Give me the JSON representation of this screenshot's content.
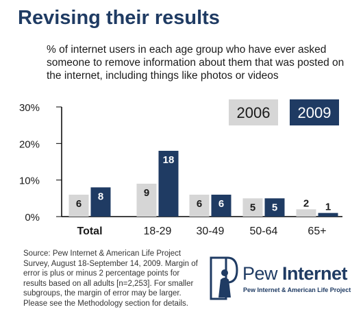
{
  "header": {
    "title": "Revising their results",
    "subtitle": "% of internet users in each age group who have ever asked someone to remove information about them that was posted on the internet, including things like photos or videos"
  },
  "chart_data": {
    "type": "bar",
    "categories": [
      "Total",
      "18-29",
      "30-49",
      "50-64",
      "65+"
    ],
    "series": [
      {
        "name": "2006",
        "values": [
          6,
          9,
          6,
          5,
          2
        ],
        "color": "#d6d6d6"
      },
      {
        "name": "2009",
        "values": [
          8,
          18,
          6,
          5,
          1
        ],
        "color": "#1f3b63"
      }
    ],
    "yticks": [
      "0%",
      "10%",
      "20%",
      "30%"
    ],
    "ylim": [
      0,
      30
    ],
    "grid": false,
    "legend_position": "top-right"
  },
  "footer": {
    "source": "Source: Pew Internet & American Life Project Survey, August 18-September 14, 2009. Margin of error is plus or minus 2 percentage points for results based on all adults [n=2,253]. For smaller subgroups, the margin of error may be larger. Please see the Methodology section for details.",
    "logo_word_light": "Pew ",
    "logo_word_bold": "Internet",
    "logo_sub": "Pew Internet & American Life Project"
  }
}
